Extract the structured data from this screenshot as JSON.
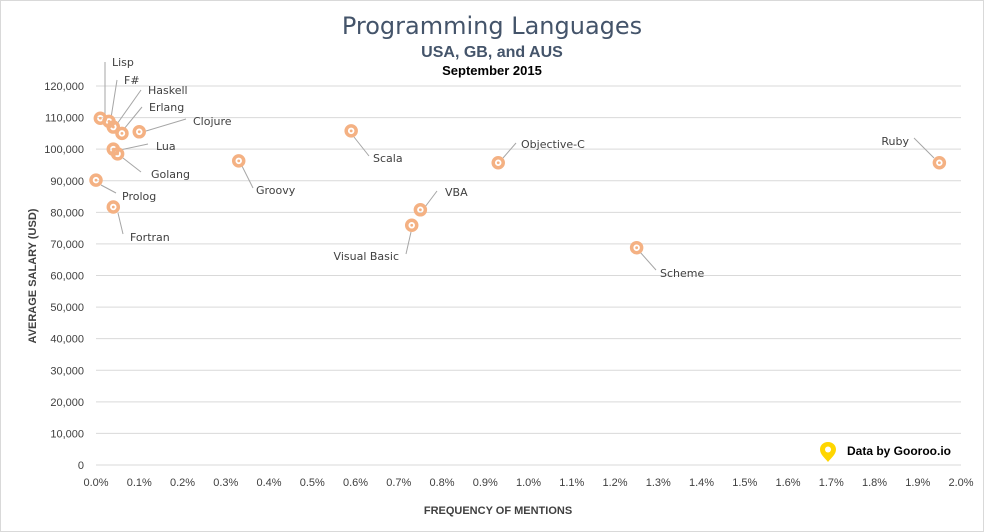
{
  "chart_data": {
    "type": "scatter",
    "title": "Programming Languages",
    "subtitle": "USA, GB, and AUS",
    "subtitle2": "September 2015",
    "xlabel": "FREQUENCY OF MENTIONS",
    "ylabel": "AVERAGE SALARY (USD)",
    "xlim": [
      0,
      2.0
    ],
    "ylim": [
      0,
      120000
    ],
    "x_ticks": [
      "0.0%",
      "0.1%",
      "0.2%",
      "0.3%",
      "0.4%",
      "0.5%",
      "0.6%",
      "0.7%",
      "0.8%",
      "0.9%",
      "1.0%",
      "1.1%",
      "1.2%",
      "1.3%",
      "1.4%",
      "1.5%",
      "1.6%",
      "1.7%",
      "1.8%",
      "1.9%",
      "2.0%"
    ],
    "y_ticks": [
      "0",
      "10,000",
      "20,000",
      "30,000",
      "40,000",
      "50,000",
      "60,000",
      "70,000",
      "80,000",
      "90,000",
      "100,000",
      "110,000",
      "120,000"
    ],
    "grid": "horizontal",
    "marker_color": "#f4b183",
    "points": [
      {
        "label": "Lisp",
        "x": 0.01,
        "y": 109800
      },
      {
        "label": "F#",
        "x": 0.03,
        "y": 108800
      },
      {
        "label": "Haskell",
        "x": 0.04,
        "y": 107000
      },
      {
        "label": "Erlang",
        "x": 0.06,
        "y": 105000
      },
      {
        "label": "Clojure",
        "x": 0.1,
        "y": 105500
      },
      {
        "label": "Lua",
        "x": 0.04,
        "y": 100000
      },
      {
        "label": "Golang",
        "x": 0.05,
        "y": 98500
      },
      {
        "label": "Prolog",
        "x": 0.0,
        "y": 90200
      },
      {
        "label": "Fortran",
        "x": 0.04,
        "y": 81700
      },
      {
        "label": "Groovy",
        "x": 0.33,
        "y": 96300
      },
      {
        "label": "Scala",
        "x": 0.59,
        "y": 105800
      },
      {
        "label": "Objective-C",
        "x": 0.93,
        "y": 95700
      },
      {
        "label": "VBA",
        "x": 0.75,
        "y": 80800
      },
      {
        "label": "Visual Basic",
        "x": 0.73,
        "y": 75900
      },
      {
        "label": "Scheme",
        "x": 1.25,
        "y": 68800
      },
      {
        "label": "Ruby",
        "x": 1.95,
        "y": 95700
      }
    ],
    "credit": "Data by Gooroo.io",
    "credit_icon_color": "#ffd600"
  }
}
